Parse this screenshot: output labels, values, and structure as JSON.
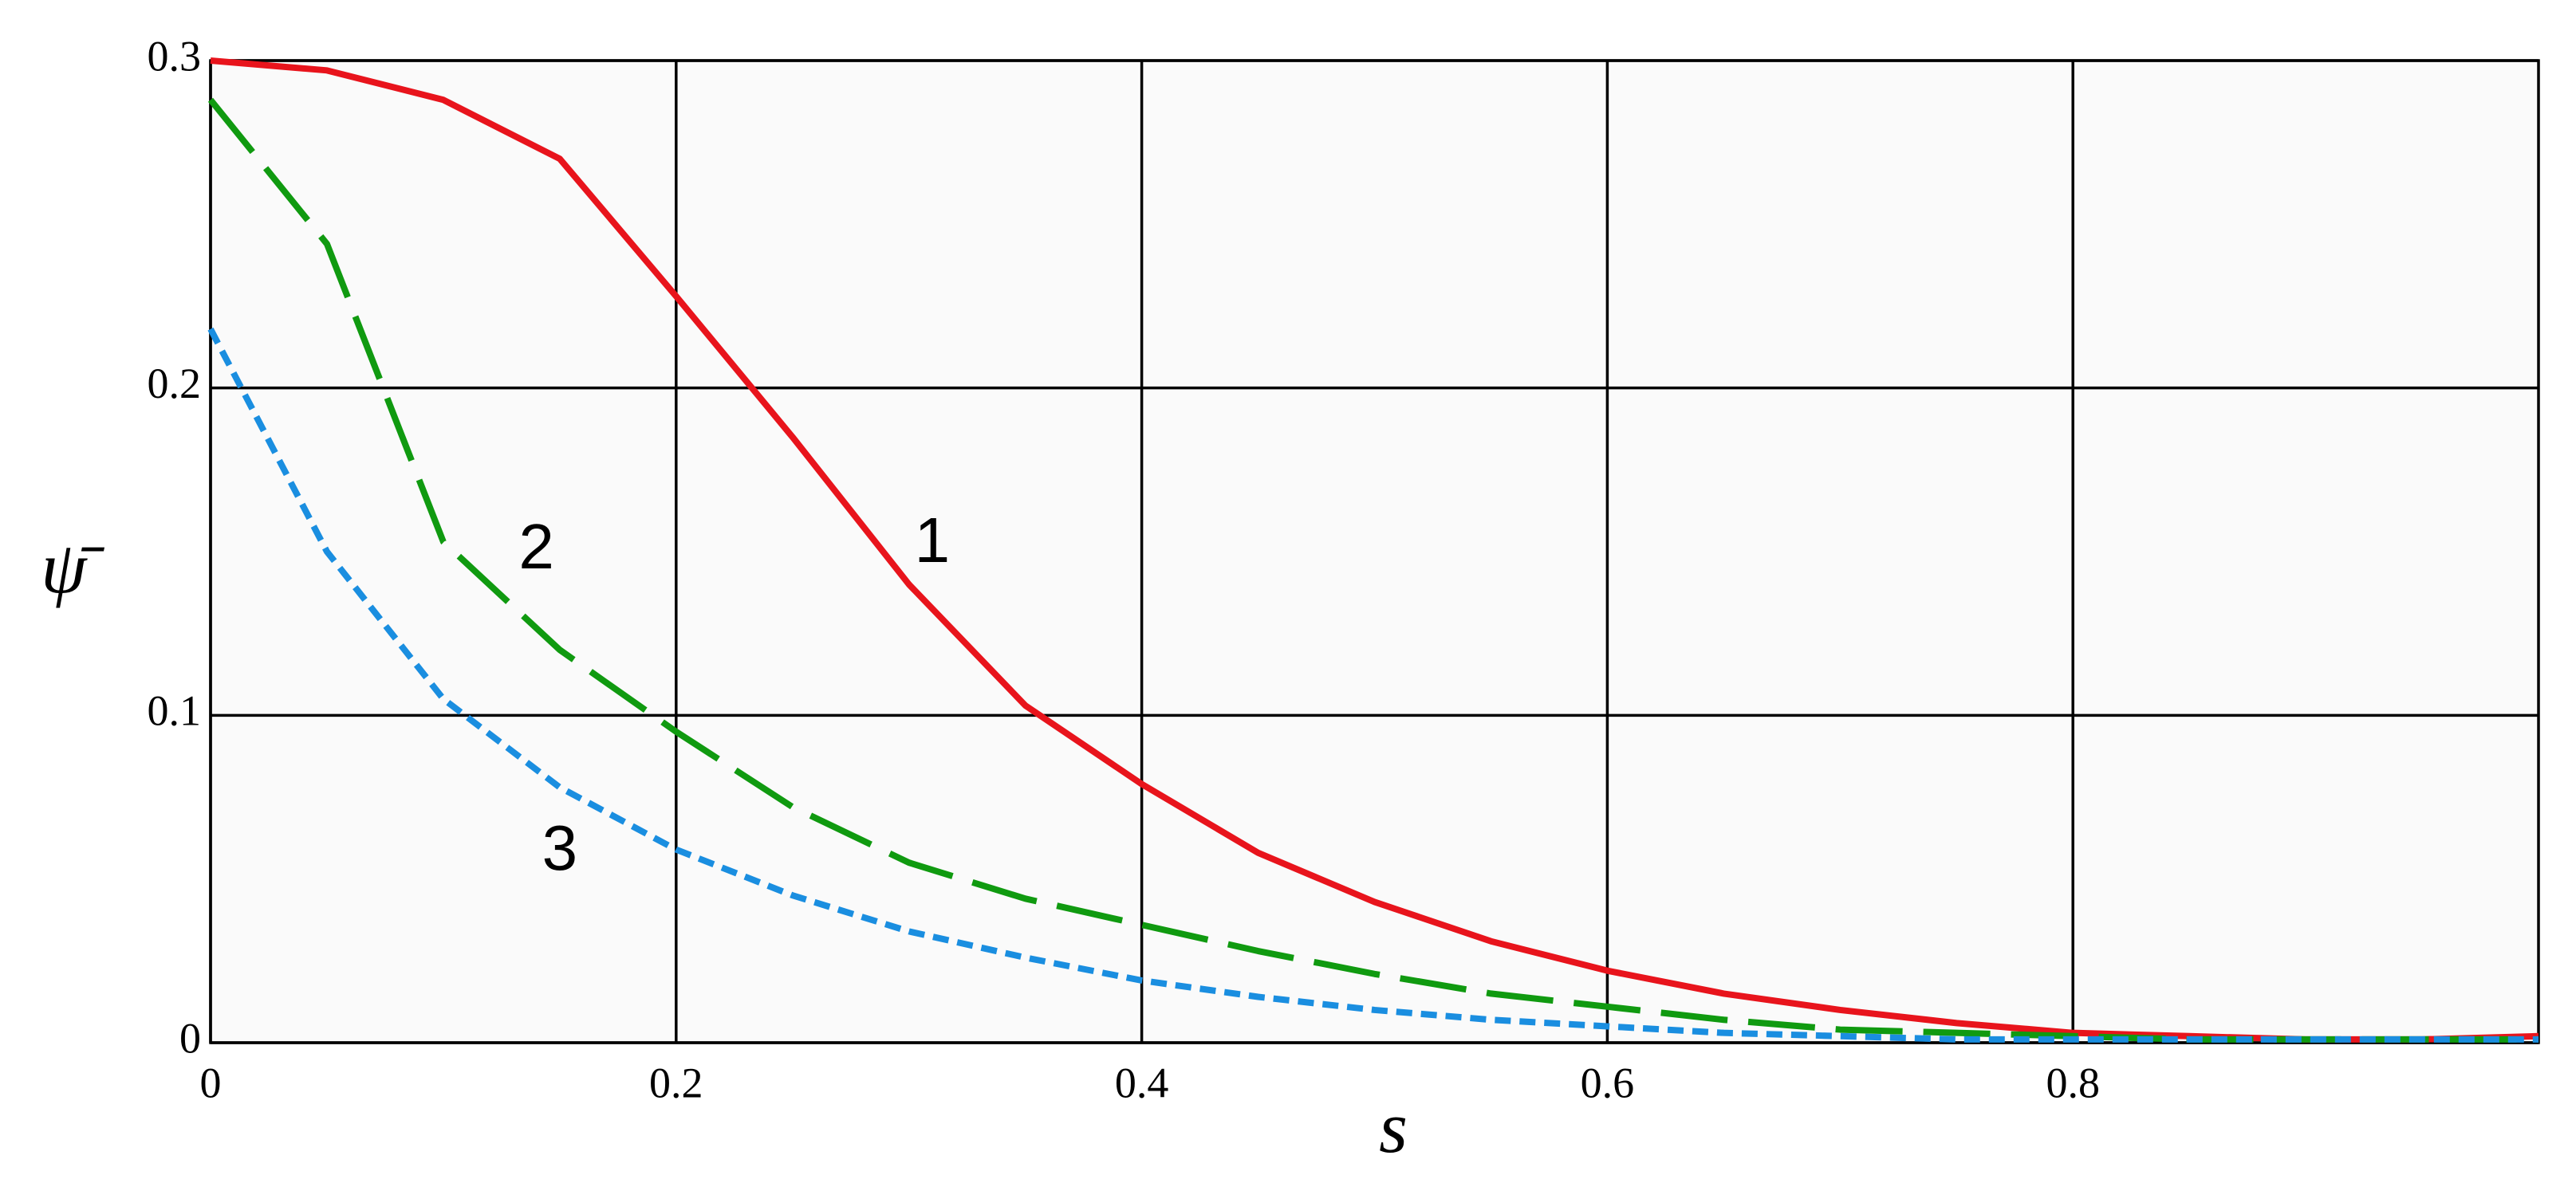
{
  "chart_data": {
    "type": "line",
    "x_label": "s",
    "y_label": "ψ̄",
    "x": [
      0,
      0.05,
      0.1,
      0.15,
      0.2,
      0.25,
      0.3,
      0.35,
      0.4,
      0.45,
      0.5,
      0.55,
      0.6,
      0.65,
      0.7,
      0.75,
      0.8,
      0.85,
      0.9,
      0.95,
      1.0
    ],
    "series": [
      {
        "name": "1",
        "color": "#e8141c",
        "style": "solid",
        "values": [
          0.3,
          0.297,
          0.288,
          0.27,
          0.228,
          0.185,
          0.14,
          0.103,
          0.079,
          0.058,
          0.043,
          0.031,
          0.022,
          0.015,
          0.01,
          0.006,
          0.003,
          0.002,
          0.001,
          0.001,
          0.002
        ]
      },
      {
        "name": "2",
        "color": "#109a10",
        "style": "dashed",
        "values": [
          0.288,
          0.244,
          0.153,
          0.12,
          0.095,
          0.072,
          0.055,
          0.044,
          0.036,
          0.028,
          0.021,
          0.015,
          0.011,
          0.007,
          0.004,
          0.003,
          0.002,
          0.001,
          0.001,
          0.001,
          0.001
        ]
      },
      {
        "name": "3",
        "color": "#1a8ee0",
        "style": "dotted",
        "values": [
          0.218,
          0.15,
          0.105,
          0.078,
          0.059,
          0.045,
          0.034,
          0.026,
          0.019,
          0.014,
          0.01,
          0.007,
          0.005,
          0.003,
          0.002,
          0.001,
          0.001,
          0.001,
          0.001,
          0.001,
          0.001
        ]
      }
    ],
    "xlim": [
      0,
      1
    ],
    "xticks": [
      0,
      0.2,
      0.4,
      0.6,
      0.8
    ],
    "ylim": [
      0,
      0.3
    ],
    "yticks": [
      0,
      0.1,
      0.2,
      0.3
    ],
    "grid": true
  }
}
